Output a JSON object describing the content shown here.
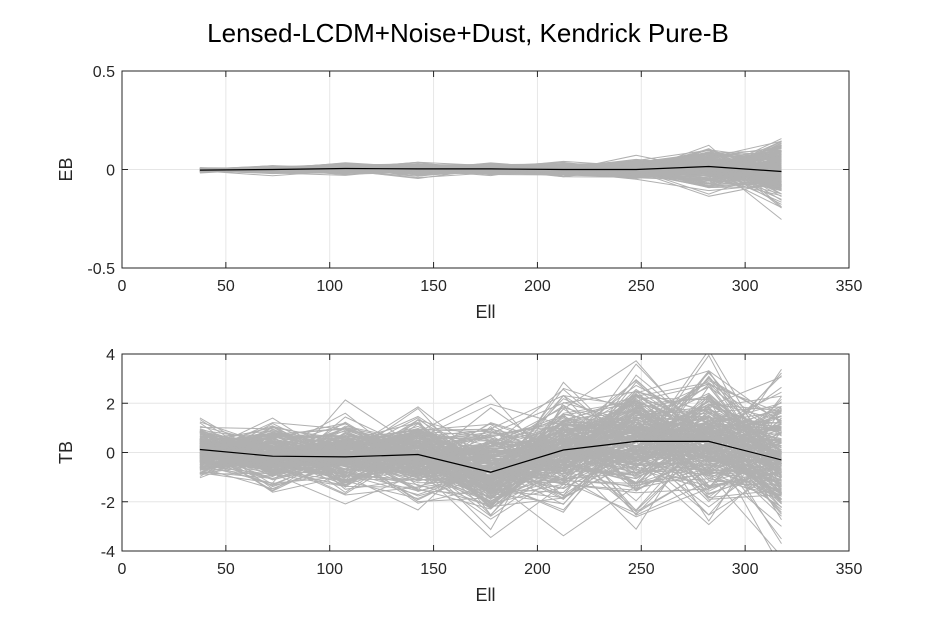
{
  "chart_data": [
    {
      "type": "line",
      "title": "Lensed-LCDM+Noise+Dust, Kendrick Pure-B",
      "xlabel": "Ell",
      "ylabel": "EB",
      "xlim": [
        0,
        350
      ],
      "ylim": [
        -0.5,
        0.5
      ],
      "x_ticks": [
        "0",
        "50",
        "100",
        "150",
        "200",
        "250",
        "300",
        "350"
      ],
      "y_ticks": [
        "-0.5",
        "0",
        "0.5"
      ],
      "grid": true,
      "x": [
        37.5,
        72.5,
        107.5,
        142.5,
        177.5,
        212.5,
        247.5,
        282.5,
        317.5
      ],
      "mean": [
        -0.003,
        0.0,
        0.005,
        0.003,
        0.003,
        0.0,
        0.0,
        0.015,
        -0.01
      ],
      "spread_std": [
        0.005,
        0.008,
        0.012,
        0.013,
        0.013,
        0.013,
        0.022,
        0.048,
        0.07
      ],
      "n_realizations": 250,
      "mean_color": "#000000",
      "realization_color": "#b0b0b0"
    },
    {
      "type": "line",
      "xlabel": "Ell",
      "ylabel": "TB",
      "xlim": [
        0,
        350
      ],
      "ylim": [
        -4,
        4
      ],
      "x_ticks": [
        "0",
        "50",
        "100",
        "150",
        "200",
        "250",
        "300",
        "350"
      ],
      "y_ticks": [
        "-4",
        "-2",
        "0",
        "2",
        "4"
      ],
      "grid": true,
      "x": [
        37.5,
        72.5,
        107.5,
        142.5,
        177.5,
        212.5,
        247.5,
        282.5,
        317.5
      ],
      "mean": [
        0.12,
        -0.15,
        -0.18,
        -0.08,
        -0.8,
        0.1,
        0.45,
        0.45,
        -0.3
      ],
      "spread_std": [
        0.45,
        0.55,
        0.65,
        0.75,
        0.95,
        1.05,
        1.2,
        1.25,
        1.3
      ],
      "n_realizations": 250,
      "mean_color": "#000000",
      "realization_color": "#b0b0b0"
    }
  ]
}
